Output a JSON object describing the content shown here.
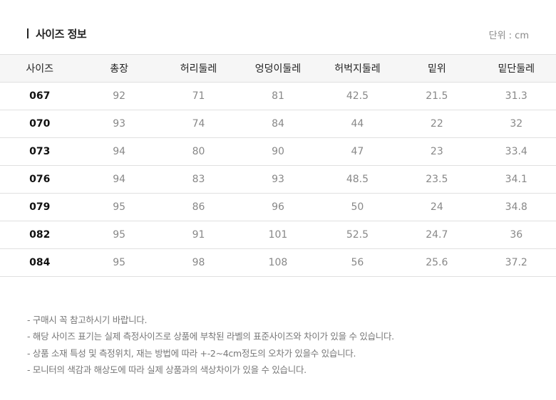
{
  "title": "사이즈 정보",
  "unit": "단위 : cm",
  "table": {
    "headers": [
      "사이즈",
      "총장",
      "허리둘레",
      "엉덩이둘레",
      "허벅지둘레",
      "밑위",
      "밑단둘레"
    ],
    "rows": [
      [
        "067",
        "92",
        "71",
        "81",
        "42.5",
        "21.5",
        "31.3"
      ],
      [
        "070",
        "93",
        "74",
        "84",
        "44",
        "22",
        "32"
      ],
      [
        "073",
        "94",
        "80",
        "90",
        "47",
        "23",
        "33.4"
      ],
      [
        "076",
        "94",
        "83",
        "93",
        "48.5",
        "23.5",
        "34.1"
      ],
      [
        "079",
        "95",
        "86",
        "96",
        "50",
        "24",
        "34.8"
      ],
      [
        "082",
        "95",
        "91",
        "101",
        "52.5",
        "24.7",
        "36"
      ],
      [
        "084",
        "95",
        "98",
        "108",
        "56",
        "25.6",
        "37.2"
      ]
    ]
  },
  "notes": [
    "- 구매시 꼭 참고하시기 바랍니다.",
    "- 해당 사이즈 표기는 실제 측정사이즈로 상품에 부착된 라벨의 표준사이즈와 차이가 있을 수 있습니다.",
    "- 상품 소재 특성 및 측정위치, 재는 방법에 따라 +-2~4cm정도의 오차가 있을수 있습니다.",
    "- 모니터의 색감과 해상도에 따라 실제 상품과의 색상차이가 있을 수 있습니다."
  ]
}
